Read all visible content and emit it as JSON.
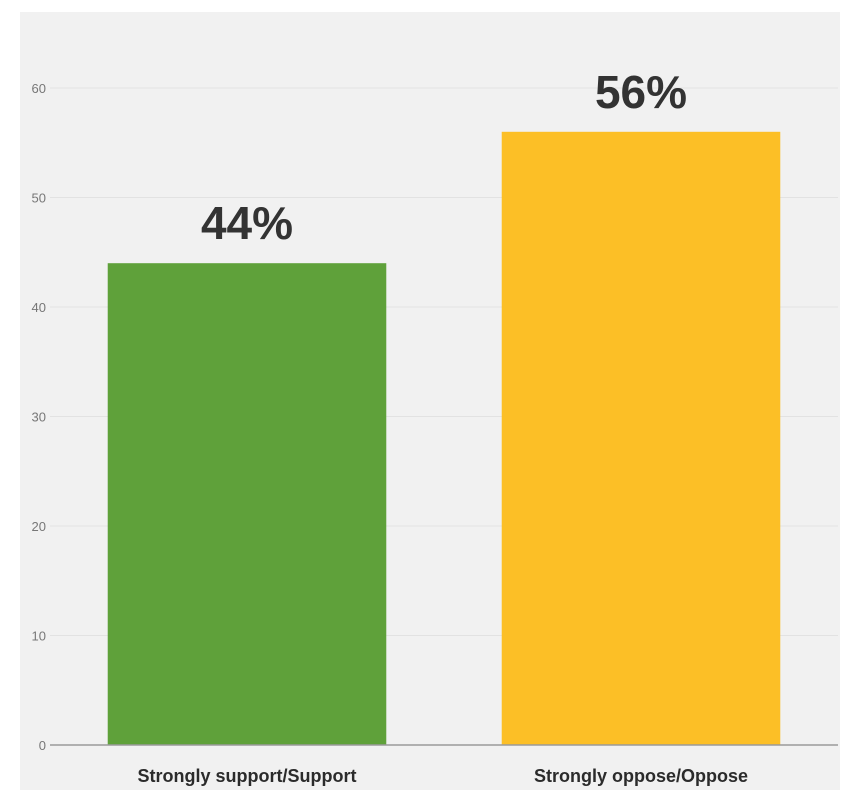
{
  "chart_data": {
    "type": "bar",
    "categories": [
      "Strongly support/Support",
      "Strongly oppose/Oppose"
    ],
    "values": [
      44,
      56
    ],
    "data_labels": [
      "44%",
      "56%"
    ],
    "bar_colors": [
      "#5fa13a",
      "#fcbf26"
    ],
    "title": "",
    "xlabel": "",
    "ylabel": "",
    "ylim": [
      0,
      60
    ],
    "yticks": [
      0,
      10,
      20,
      30,
      40,
      50,
      60
    ],
    "grid": true,
    "legend": "none",
    "background_color": "#f1f1f1",
    "gridline_color": "#e2e2e2"
  }
}
